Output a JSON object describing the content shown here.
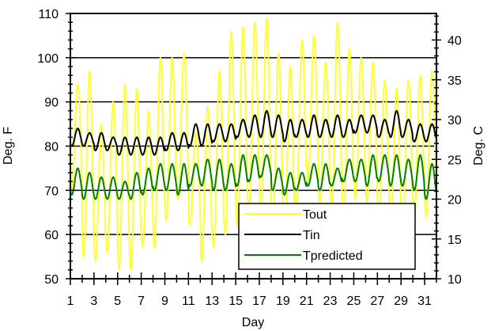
{
  "chart_data": {
    "type": "line",
    "xlabel": "Day",
    "ylabel_left": "Deg. F",
    "ylabel_right": "Deg. C",
    "xlim": [
      1,
      32
    ],
    "ylim_left": [
      50,
      110
    ],
    "ylim_right_equivalent_C": [
      10,
      43.33
    ],
    "x_ticks": [
      1,
      3,
      5,
      7,
      9,
      11,
      13,
      15,
      17,
      19,
      21,
      23,
      25,
      27,
      29,
      31
    ],
    "x_tick_labels": [
      "1",
      "3",
      "5",
      "7",
      "9",
      "11",
      "13",
      "15",
      "17",
      "19",
      "21",
      "23",
      "25",
      "27",
      "29",
      "31"
    ],
    "y_left_ticks": [
      50,
      60,
      70,
      80,
      90,
      100,
      110
    ],
    "y_left_tick_labels": [
      "50",
      "60",
      "70",
      "80",
      "90",
      "100",
      "110"
    ],
    "y_right_ticks": [
      10,
      15,
      20,
      25,
      30,
      35,
      40
    ],
    "y_right_tick_labels": [
      "10",
      "15",
      "20",
      "25",
      "30",
      "35",
      "40"
    ],
    "grid": "horizontal",
    "legend_position": "bottom-right",
    "daily_pattern": "each series oscillates once per day between a daily minimum (early morning) and a daily maximum (afternoon)",
    "series": [
      {
        "name": "Tout",
        "color": "#ffff33",
        "width": 2,
        "day": [
          1,
          2,
          3,
          4,
          5,
          6,
          7,
          8,
          9,
          10,
          11,
          12,
          13,
          14,
          15,
          16,
          17,
          18,
          19,
          20,
          21,
          22,
          23,
          24,
          25,
          26,
          27,
          28,
          29,
          30,
          31,
          32
        ],
        "daily_min": [
          70,
          55,
          54,
          56,
          52,
          52,
          57,
          57,
          63,
          68,
          62,
          54,
          57,
          60,
          62,
          65,
          62,
          60,
          57,
          66,
          72,
          67,
          64,
          62,
          68,
          67,
          64,
          62,
          60,
          64,
          64,
          72
        ],
        "daily_max": [
          94,
          97,
          85,
          90,
          94,
          93,
          88,
          100,
          100,
          101,
          83,
          89,
          97,
          106,
          107,
          108,
          109,
          101,
          98,
          104,
          105,
          99,
          108,
          102,
          100,
          99,
          95,
          93,
          95,
          96,
          97,
          97
        ]
      },
      {
        "name": "Tin",
        "color": "#000000",
        "width": 2,
        "day": [
          1,
          2,
          3,
          4,
          5,
          6,
          7,
          8,
          9,
          10,
          11,
          12,
          13,
          14,
          15,
          16,
          17,
          18,
          19,
          20,
          21,
          22,
          23,
          24,
          25,
          26,
          27,
          28,
          29,
          30,
          31,
          32
        ],
        "daily_min": [
          80,
          80,
          79,
          79,
          78,
          78,
          78,
          78,
          79,
          79,
          80,
          80,
          81,
          81,
          82,
          82,
          82,
          82,
          81,
          82,
          82,
          82,
          82,
          82,
          83,
          83,
          82,
          82,
          82,
          81,
          81,
          83
        ],
        "daily_max": [
          84,
          83,
          83,
          82,
          82,
          82,
          82,
          82,
          83,
          83,
          85,
          85,
          85,
          85,
          86,
          87,
          88,
          87,
          86,
          86,
          87,
          86,
          87,
          86,
          87,
          87,
          86,
          88,
          86,
          85,
          85,
          86
        ]
      },
      {
        "name": "Tpredicted",
        "color": "#008000",
        "width": 2,
        "day": [
          1,
          2,
          3,
          4,
          5,
          6,
          7,
          8,
          9,
          10,
          11,
          12,
          13,
          14,
          15,
          16,
          17,
          18,
          19,
          20,
          21,
          22,
          23,
          24,
          25,
          26,
          27,
          28,
          29,
          30,
          31,
          32
        ],
        "daily_min": [
          69,
          68,
          68,
          68,
          68,
          68,
          69,
          70,
          70,
          69,
          71,
          71,
          70,
          70,
          71,
          72,
          73,
          70,
          69,
          70,
          71,
          70,
          71,
          72,
          72,
          71,
          72,
          71,
          71,
          70,
          68,
          72
        ],
        "daily_max": [
          75,
          74,
          73,
          73,
          72,
          74,
          75,
          76,
          76,
          76,
          76,
          77,
          77,
          76,
          78,
          78,
          78,
          75,
          74,
          74,
          76,
          76,
          75,
          77,
          77,
          78,
          78,
          78,
          77,
          78,
          76,
          76
        ]
      }
    ]
  }
}
